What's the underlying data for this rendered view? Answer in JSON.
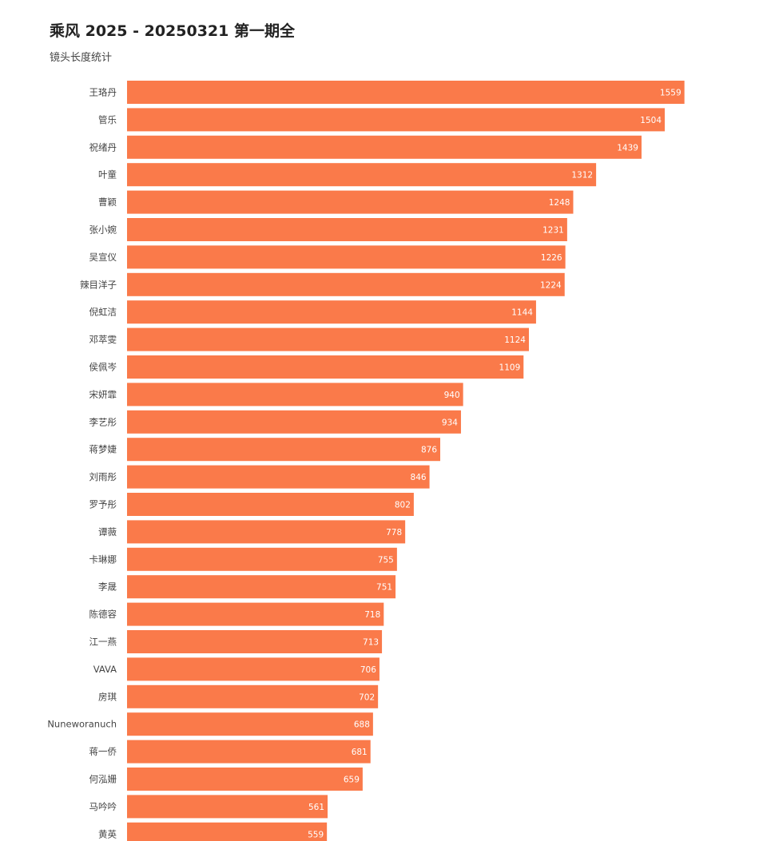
{
  "header": {
    "title": "乘风 2025 - 20250321 第一期全",
    "subtitle": "镜头长度统计"
  },
  "colors": {
    "bar": "#FA7A4A",
    "label": "#444444",
    "value_text": "#ffffff",
    "background": "#ffffff"
  },
  "chart_data": {
    "type": "bar",
    "orientation": "horizontal",
    "title": "乘风 2025 - 20250321 第一期全",
    "subtitle": "镜头长度统计",
    "xlabel": "",
    "ylabel": "",
    "xlim": [
      0,
      1650
    ],
    "grid": false,
    "categories": [
      "王珞丹",
      "管乐",
      "祝绪丹",
      "叶童",
      "曹颖",
      "张小婉",
      "吴宣仪",
      "辣目洋子",
      "倪虹洁",
      "邓萃雯",
      "侯佩岑",
      "宋妍霏",
      "李艺彤",
      "蒋梦婕",
      "刘雨彤",
      "罗予彤",
      "谭薇",
      "卡琳娜",
      "李晟",
      "陈德容",
      "江一燕",
      "VAVA",
      "房琪",
      "Nuneworanuch",
      "蒋一侨",
      "何泓姗",
      "马吟吟",
      "黄英"
    ],
    "values": [
      1559,
      1504,
      1439,
      1312,
      1248,
      1231,
      1226,
      1224,
      1144,
      1124,
      1109,
      940,
      934,
      876,
      846,
      802,
      778,
      755,
      751,
      718,
      713,
      706,
      702,
      688,
      681,
      659,
      561,
      559
    ]
  }
}
